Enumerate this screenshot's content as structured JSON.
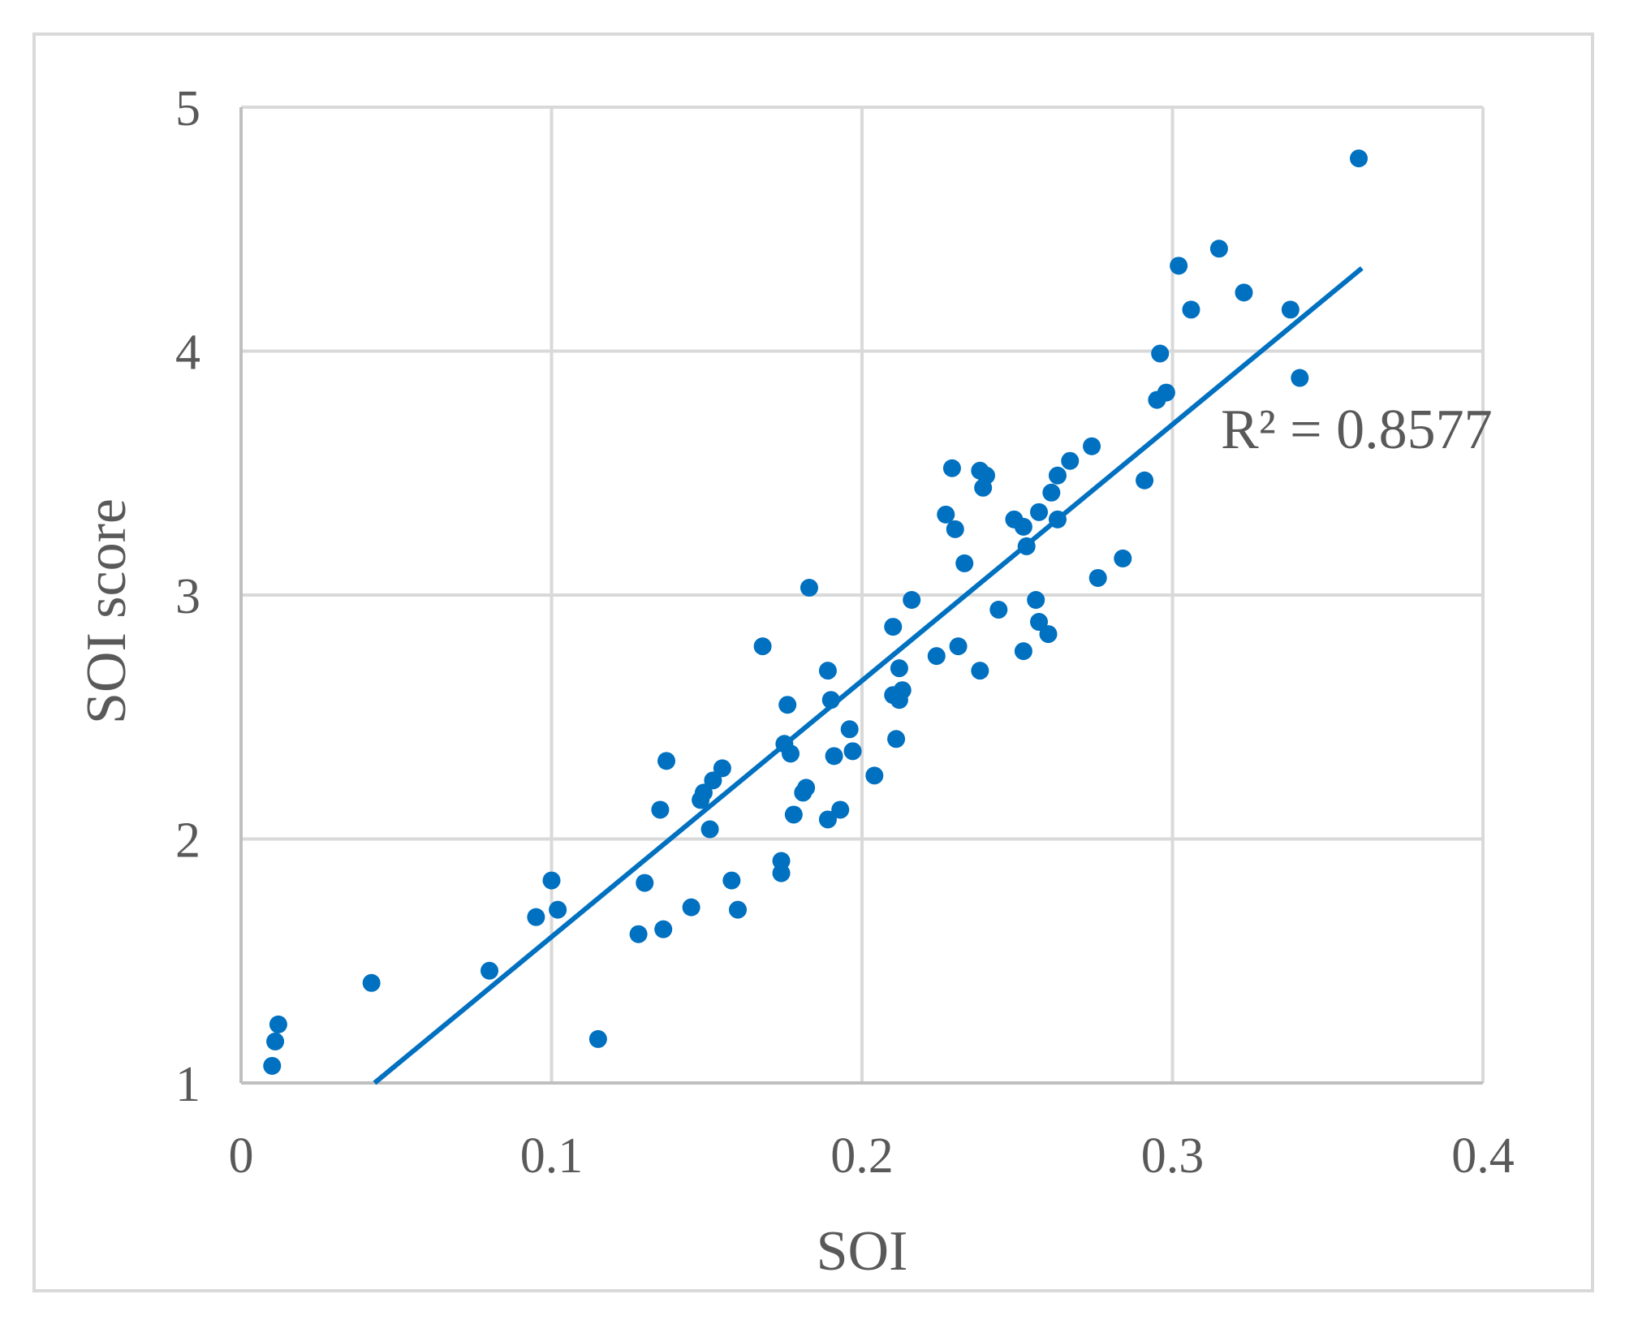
{
  "chart_data": {
    "type": "scatter",
    "xlabel": "SOI",
    "ylabel": "SOI score",
    "xlim": [
      0,
      0.4
    ],
    "ylim": [
      1,
      5
    ],
    "x_ticks": [
      "0",
      "0.1",
      "0.2",
      "0.3",
      "0.4"
    ],
    "y_ticks": [
      "1",
      "2",
      "3",
      "4",
      "5"
    ],
    "grid": true,
    "colors": {
      "points": "#0070c0",
      "trendline": "#0070c0",
      "grid": "#d9d9d9",
      "text": "#595959"
    },
    "trendline": {
      "type": "linear",
      "x": [
        0.043,
        0.361
      ],
      "y": [
        1.0,
        4.34
      ],
      "r2_label": "R² = 0.8577"
    },
    "points": [
      [
        0.01,
        1.07
      ],
      [
        0.011,
        1.17
      ],
      [
        0.012,
        1.24
      ],
      [
        0.042,
        1.41
      ],
      [
        0.08,
        1.46
      ],
      [
        0.095,
        1.68
      ],
      [
        0.1,
        1.83
      ],
      [
        0.102,
        1.71
      ],
      [
        0.115,
        1.18
      ],
      [
        0.128,
        1.61
      ],
      [
        0.13,
        1.82
      ],
      [
        0.135,
        2.12
      ],
      [
        0.136,
        1.63
      ],
      [
        0.137,
        2.32
      ],
      [
        0.145,
        1.72
      ],
      [
        0.148,
        2.16
      ],
      [
        0.149,
        2.19
      ],
      [
        0.151,
        2.04
      ],
      [
        0.152,
        2.24
      ],
      [
        0.155,
        2.29
      ],
      [
        0.158,
        1.83
      ],
      [
        0.16,
        1.71
      ],
      [
        0.168,
        2.79
      ],
      [
        0.174,
        1.91
      ],
      [
        0.174,
        1.86
      ],
      [
        0.175,
        2.39
      ],
      [
        0.176,
        2.55
      ],
      [
        0.177,
        2.35
      ],
      [
        0.178,
        2.1
      ],
      [
        0.181,
        2.19
      ],
      [
        0.182,
        2.21
      ],
      [
        0.183,
        3.03
      ],
      [
        0.189,
        2.69
      ],
      [
        0.189,
        2.08
      ],
      [
        0.19,
        2.57
      ],
      [
        0.191,
        2.34
      ],
      [
        0.193,
        2.12
      ],
      [
        0.196,
        2.45
      ],
      [
        0.197,
        2.36
      ],
      [
        0.204,
        2.26
      ],
      [
        0.21,
        2.87
      ],
      [
        0.21,
        2.59
      ],
      [
        0.211,
        2.41
      ],
      [
        0.212,
        2.7
      ],
      [
        0.212,
        2.57
      ],
      [
        0.213,
        2.61
      ],
      [
        0.216,
        2.98
      ],
      [
        0.224,
        2.75
      ],
      [
        0.227,
        3.33
      ],
      [
        0.229,
        3.52
      ],
      [
        0.23,
        3.27
      ],
      [
        0.231,
        2.79
      ],
      [
        0.233,
        3.13
      ],
      [
        0.238,
        3.51
      ],
      [
        0.238,
        2.69
      ],
      [
        0.239,
        3.44
      ],
      [
        0.24,
        3.49
      ],
      [
        0.244,
        2.94
      ],
      [
        0.249,
        3.31
      ],
      [
        0.252,
        3.28
      ],
      [
        0.252,
        2.77
      ],
      [
        0.253,
        3.2
      ],
      [
        0.256,
        2.98
      ],
      [
        0.257,
        3.34
      ],
      [
        0.257,
        2.89
      ],
      [
        0.26,
        2.84
      ],
      [
        0.261,
        3.42
      ],
      [
        0.263,
        3.49
      ],
      [
        0.263,
        3.31
      ],
      [
        0.267,
        3.55
      ],
      [
        0.274,
        3.61
      ],
      [
        0.276,
        3.07
      ],
      [
        0.284,
        3.15
      ],
      [
        0.291,
        3.47
      ],
      [
        0.295,
        3.8
      ],
      [
        0.296,
        3.99
      ],
      [
        0.298,
        3.83
      ],
      [
        0.302,
        4.35
      ],
      [
        0.306,
        4.17
      ],
      [
        0.315,
        4.42
      ],
      [
        0.323,
        4.24
      ],
      [
        0.338,
        4.17
      ],
      [
        0.341,
        3.89
      ],
      [
        0.36,
        4.79
      ]
    ]
  }
}
